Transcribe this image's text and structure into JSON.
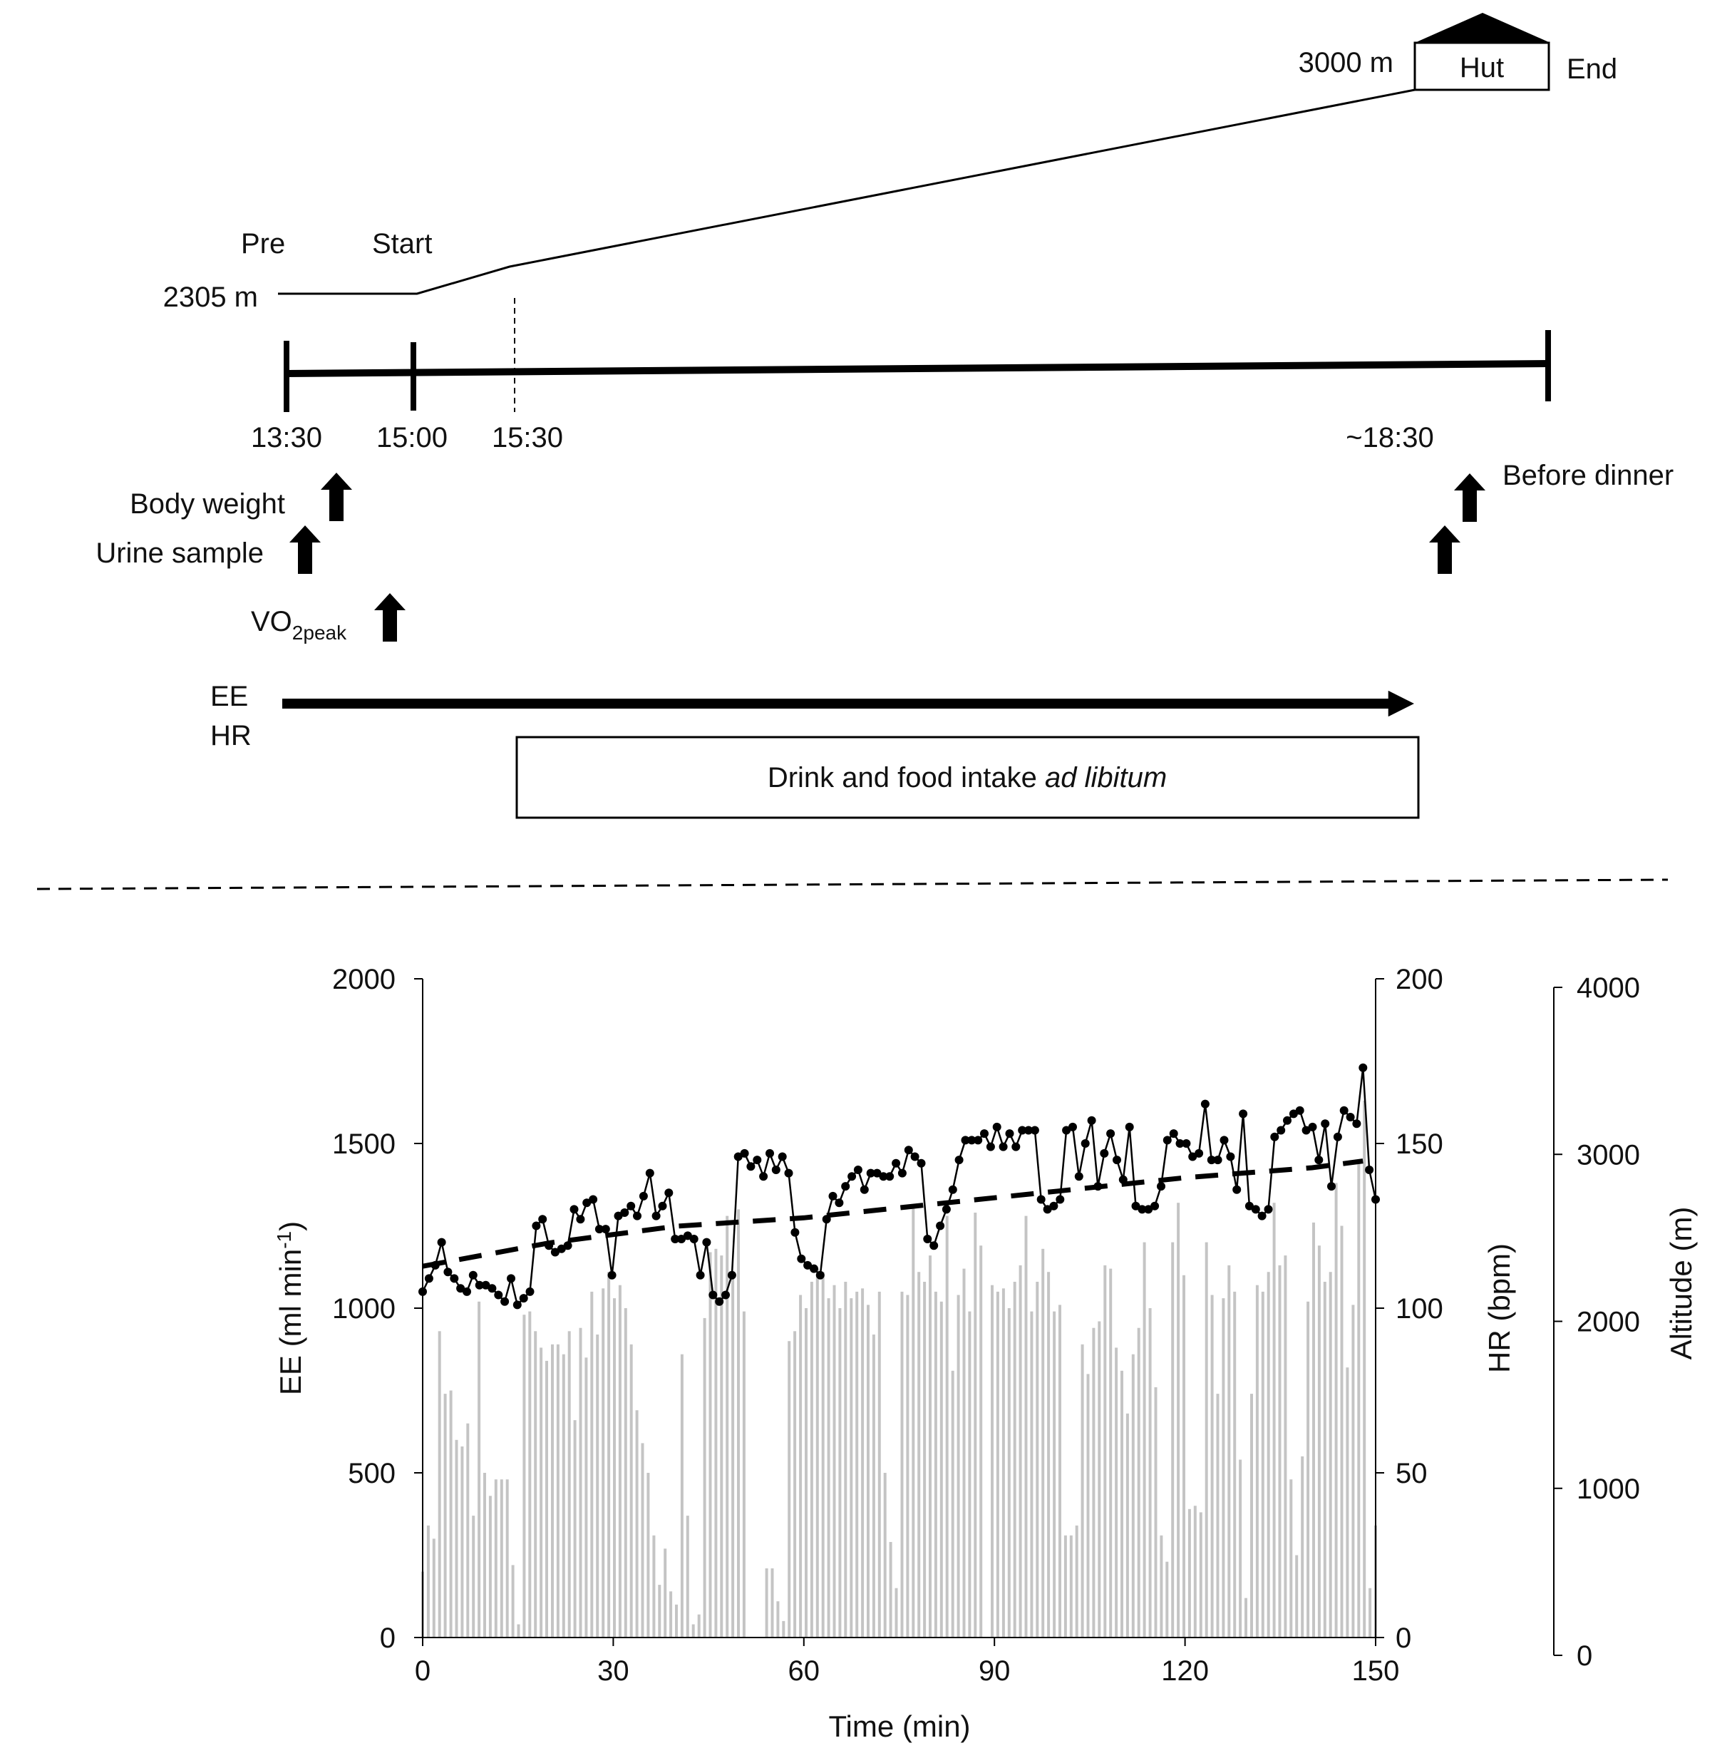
{
  "protocol": {
    "labels": {
      "pre": "Pre",
      "start": "Start",
      "end": "End",
      "hut": "Hut",
      "alt_start": "2305 m",
      "alt_end": "3000 m"
    },
    "times": [
      "13:30",
      "15:00",
      "15:30",
      "~18:30"
    ],
    "measurements": {
      "body_weight": "Body weight",
      "urine_sample": "Urine sample",
      "vo2_base": "VO",
      "vo2_sub": "2peak",
      "before_dinner": "Before dinner",
      "ee": "EE",
      "hr": "HR"
    },
    "intake_box": {
      "text": "Drink and food intake ",
      "italic": "ad libitum"
    }
  },
  "chart_data": {
    "type": "line",
    "xlabel": "Time (min)",
    "xlim": [
      0,
      150
    ],
    "xticks": [
      "0",
      "30",
      "60",
      "90",
      "120",
      "150"
    ],
    "y_left": {
      "label_base": "EE (ml min",
      "label_sup": "-1",
      "label_end": ")",
      "lim": [
        0,
        2000
      ],
      "ticks": [
        "0",
        "500",
        "1000",
        "1500",
        "2000"
      ]
    },
    "y_right1": {
      "label": "HR (bpm)",
      "lim": [
        0,
        200
      ],
      "ticks": [
        "0",
        "50",
        "100",
        "150",
        "200"
      ]
    },
    "y_right2": {
      "label": "Altitude (m)",
      "lim": [
        0,
        4000
      ],
      "ticks": [
        "0",
        "1000",
        "2000",
        "3000",
        "4000"
      ]
    },
    "series": [
      {
        "name": "EE",
        "style": "grey bars",
        "color": "#c4c4c4",
        "values": [
          200,
          340,
          300,
          930,
          740,
          750,
          600,
          580,
          650,
          370,
          1020,
          500,
          430,
          480,
          480,
          480,
          220,
          40,
          980,
          990,
          930,
          880,
          840,
          890,
          890,
          860,
          930,
          660,
          940,
          850,
          1050,
          920,
          1060,
          1110,
          1030,
          1070,
          1000,
          890,
          690,
          590,
          500,
          310,
          160,
          270,
          140,
          100,
          860,
          370,
          40,
          70,
          970,
          1170,
          1180,
          1160,
          1280,
          1110,
          1300,
          990,
          0,
          0,
          0,
          210,
          210,
          110,
          50,
          900,
          930,
          1040,
          1000,
          1080,
          1120,
          1110,
          1030,
          1070,
          1000,
          1080,
          1030,
          1050,
          1060,
          1010,
          920,
          1050,
          500,
          290,
          150,
          1050,
          1040,
          1310,
          1110,
          1080,
          1160,
          1050,
          1020,
          1280,
          810,
          1040,
          1120,
          990,
          1290,
          1190,
          0,
          1070,
          1050,
          1060,
          1000,
          1080,
          1130,
          1280,
          990,
          1080,
          1180,
          1110,
          990,
          1010,
          310,
          310,
          340,
          890,
          800,
          940,
          960,
          1130,
          1120,
          880,
          810,
          680,
          860,
          940,
          1200,
          1000,
          760,
          310,
          230,
          1200,
          1320,
          1100,
          390,
          400,
          380,
          1200,
          1040,
          740,
          1030,
          1130,
          1050,
          540,
          120,
          740,
          1070,
          1050,
          1110,
          1320,
          1130,
          1160,
          480,
          250,
          550,
          1020,
          1260,
          1190,
          1080,
          1110,
          1380,
          1250,
          820,
          1010,
          1440,
          1630,
          150,
          340
        ]
      },
      {
        "name": "HR",
        "style": "black line with dots",
        "color": "#000000",
        "values": [
          105,
          109,
          113,
          120,
          111,
          109,
          106,
          105,
          110,
          107,
          107,
          106,
          104,
          102,
          109,
          101,
          103,
          105,
          125,
          127,
          119,
          117,
          118,
          119,
          130,
          127,
          132,
          133,
          124,
          124,
          110,
          128,
          129,
          131,
          128,
          134,
          141,
          128,
          131,
          135,
          121,
          121,
          122,
          121,
          110,
          120,
          104,
          102,
          104,
          110,
          146,
          147,
          143,
          145,
          140,
          147,
          142,
          146,
          141,
          123,
          115,
          113,
          112,
          110,
          127,
          134,
          132,
          137,
          140,
          142,
          136,
          141,
          141,
          140,
          140,
          144,
          141,
          148,
          146,
          144,
          121,
          119,
          125,
          130,
          136,
          145,
          151,
          151,
          151,
          153,
          149,
          155,
          149,
          153,
          149,
          154,
          154,
          154,
          133,
          130,
          131,
          133,
          154,
          155,
          140,
          150,
          157,
          137,
          147,
          153,
          145,
          139,
          155,
          131,
          130,
          130,
          131,
          137,
          151,
          153,
          150,
          150,
          146,
          147,
          162,
          145,
          145,
          151,
          146,
          136,
          159,
          131,
          130,
          128,
          130,
          152,
          154,
          157,
          159,
          160,
          154,
          155,
          145,
          156,
          137,
          152,
          160,
          158,
          156,
          173,
          142,
          133
        ]
      },
      {
        "name": "Altitude trend",
        "style": "dashed",
        "color": "#000000",
        "points": [
          [
            0,
            2330
          ],
          [
            20,
            2470
          ],
          [
            40,
            2570
          ],
          [
            60,
            2620
          ],
          [
            80,
            2700
          ],
          [
            100,
            2780
          ],
          [
            120,
            2860
          ],
          [
            140,
            2920
          ],
          [
            148,
            2960
          ]
        ]
      }
    ]
  }
}
